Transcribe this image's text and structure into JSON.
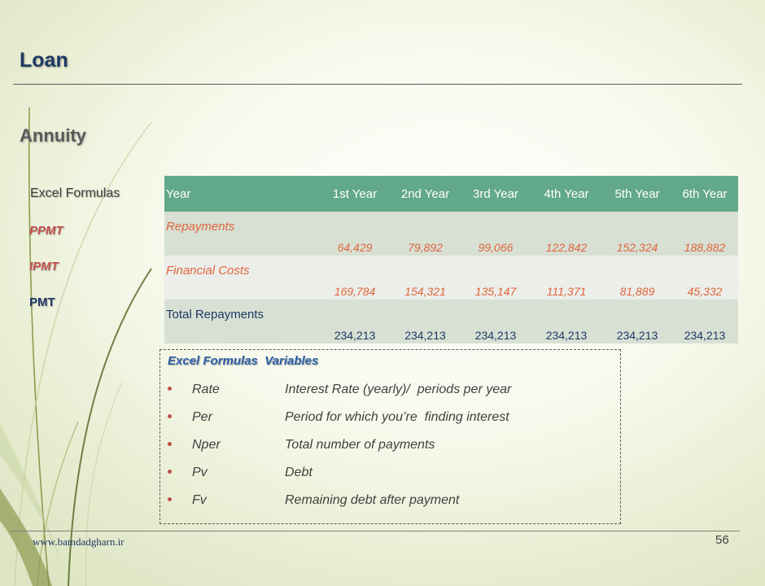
{
  "slide": {
    "title": "Loan",
    "subtitle": "Annuity",
    "side_labels": {
      "header": "Excel Formulas",
      "ppmt": "PPMT",
      "ipmt": "IPMT",
      "pmt": "PMT"
    },
    "table": {
      "header_label": "Year",
      "years": [
        "1st Year",
        "2nd Year",
        "3rd Year",
        "4th Year",
        "5th Year",
        "6th Year"
      ],
      "rows": [
        {
          "label": "Repayments",
          "values": [
            "64,429",
            "79,892",
            "99,066",
            "122,842",
            "152,324",
            "188,882"
          ]
        },
        {
          "label": "Financial Costs",
          "values": [
            "169,784",
            "154,321",
            "135,147",
            "111,371",
            "81,889",
            "45,332"
          ]
        },
        {
          "label": "Total Repayments",
          "values": [
            "234,213",
            "234,213",
            "234,213",
            "234,213",
            "234,213",
            "234,213"
          ]
        }
      ]
    },
    "variables": {
      "title": "Excel Formulas  Variables",
      "items": [
        {
          "name": "Rate",
          "desc": "Interest Rate (yearly)/  periods per year"
        },
        {
          "name": "Per",
          "desc": "Period for which you’re  finding interest"
        },
        {
          "name": "Nper",
          "desc": "Total number of payments"
        },
        {
          "name": "Pv",
          "desc": "Debt"
        },
        {
          "name": "Fv",
          "desc": "Remaining debt after payment"
        }
      ]
    },
    "footer": {
      "url": "www.bamdadgharn.ir",
      "page_number": "56"
    }
  },
  "colors": {
    "title": "#1f3864",
    "table_header": "#62a88a",
    "accent_red": "#c0504d",
    "accent_orange": "#e0643d"
  }
}
